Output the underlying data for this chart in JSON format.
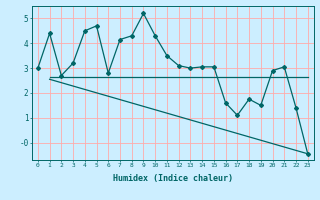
{
  "xlabel": "Humidex (Indice chaleur)",
  "bg_color": "#cceeff",
  "plot_bg_color": "#cceeff",
  "line_color": "#006666",
  "grid_color": "#ffaaaa",
  "xlim": [
    -0.5,
    23.5
  ],
  "ylim": [
    -0.7,
    5.5
  ],
  "yticks": [
    0,
    1,
    2,
    3,
    4,
    5
  ],
  "ytick_labels": [
    "-0",
    "1",
    "2",
    "3",
    "4",
    "5"
  ],
  "xticks": [
    0,
    1,
    2,
    3,
    4,
    5,
    6,
    7,
    8,
    9,
    10,
    11,
    12,
    13,
    14,
    15,
    16,
    17,
    18,
    19,
    20,
    21,
    22,
    23
  ],
  "series1_x": [
    0,
    1,
    2,
    3,
    4,
    5,
    6,
    7,
    8,
    9,
    10,
    11,
    12,
    13,
    14,
    15,
    16,
    17,
    18,
    19,
    20,
    21,
    22,
    23
  ],
  "series1_y": [
    3.0,
    4.4,
    2.7,
    3.2,
    4.5,
    4.7,
    2.8,
    4.15,
    4.3,
    5.2,
    4.3,
    3.5,
    3.1,
    3.0,
    3.05,
    3.05,
    1.6,
    1.1,
    1.75,
    1.5,
    2.9,
    3.05,
    1.4,
    -0.45
  ],
  "series2_x": [
    1,
    23
  ],
  "series2_y": [
    2.65,
    2.65
  ],
  "series3_x": [
    1,
    23
  ],
  "series3_y": [
    2.55,
    -0.45
  ]
}
